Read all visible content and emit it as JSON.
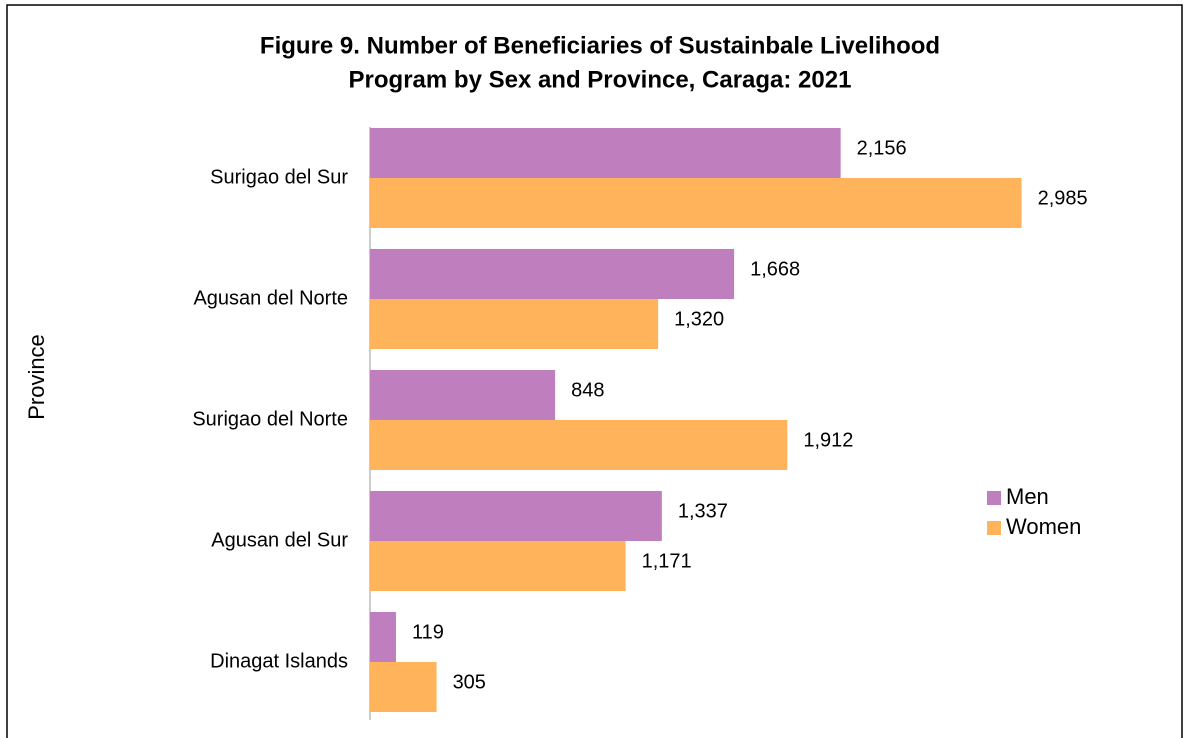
{
  "chart_data": {
    "type": "hbar",
    "title": "Figure 9. Number of Beneficiaries of Sustainbale Livelihood",
    "subtitle": "Program by Sex and Province, Caraga: 2021",
    "y_label": "Province",
    "categories": [
      "Surigao del Sur",
      "Agusan del Norte",
      "Surigao del Norte",
      "Agusan del Sur",
      "Dinagat Islands"
    ],
    "series": [
      {
        "name": "Men",
        "color": "#bf7fbf",
        "values": [
          2156,
          1668,
          848,
          1337,
          119
        ],
        "value_labels": [
          "2,156",
          "1,668",
          "848",
          "1,337",
          "119"
        ]
      },
      {
        "name": "Women",
        "color": "#ffb35a",
        "values": [
          2985,
          1320,
          1912,
          1171,
          305
        ],
        "value_labels": [
          "2,985",
          "1,320",
          "1,912",
          "1,171",
          "305"
        ]
      }
    ],
    "xlim": [
      0,
      3500
    ],
    "legend": "right"
  }
}
